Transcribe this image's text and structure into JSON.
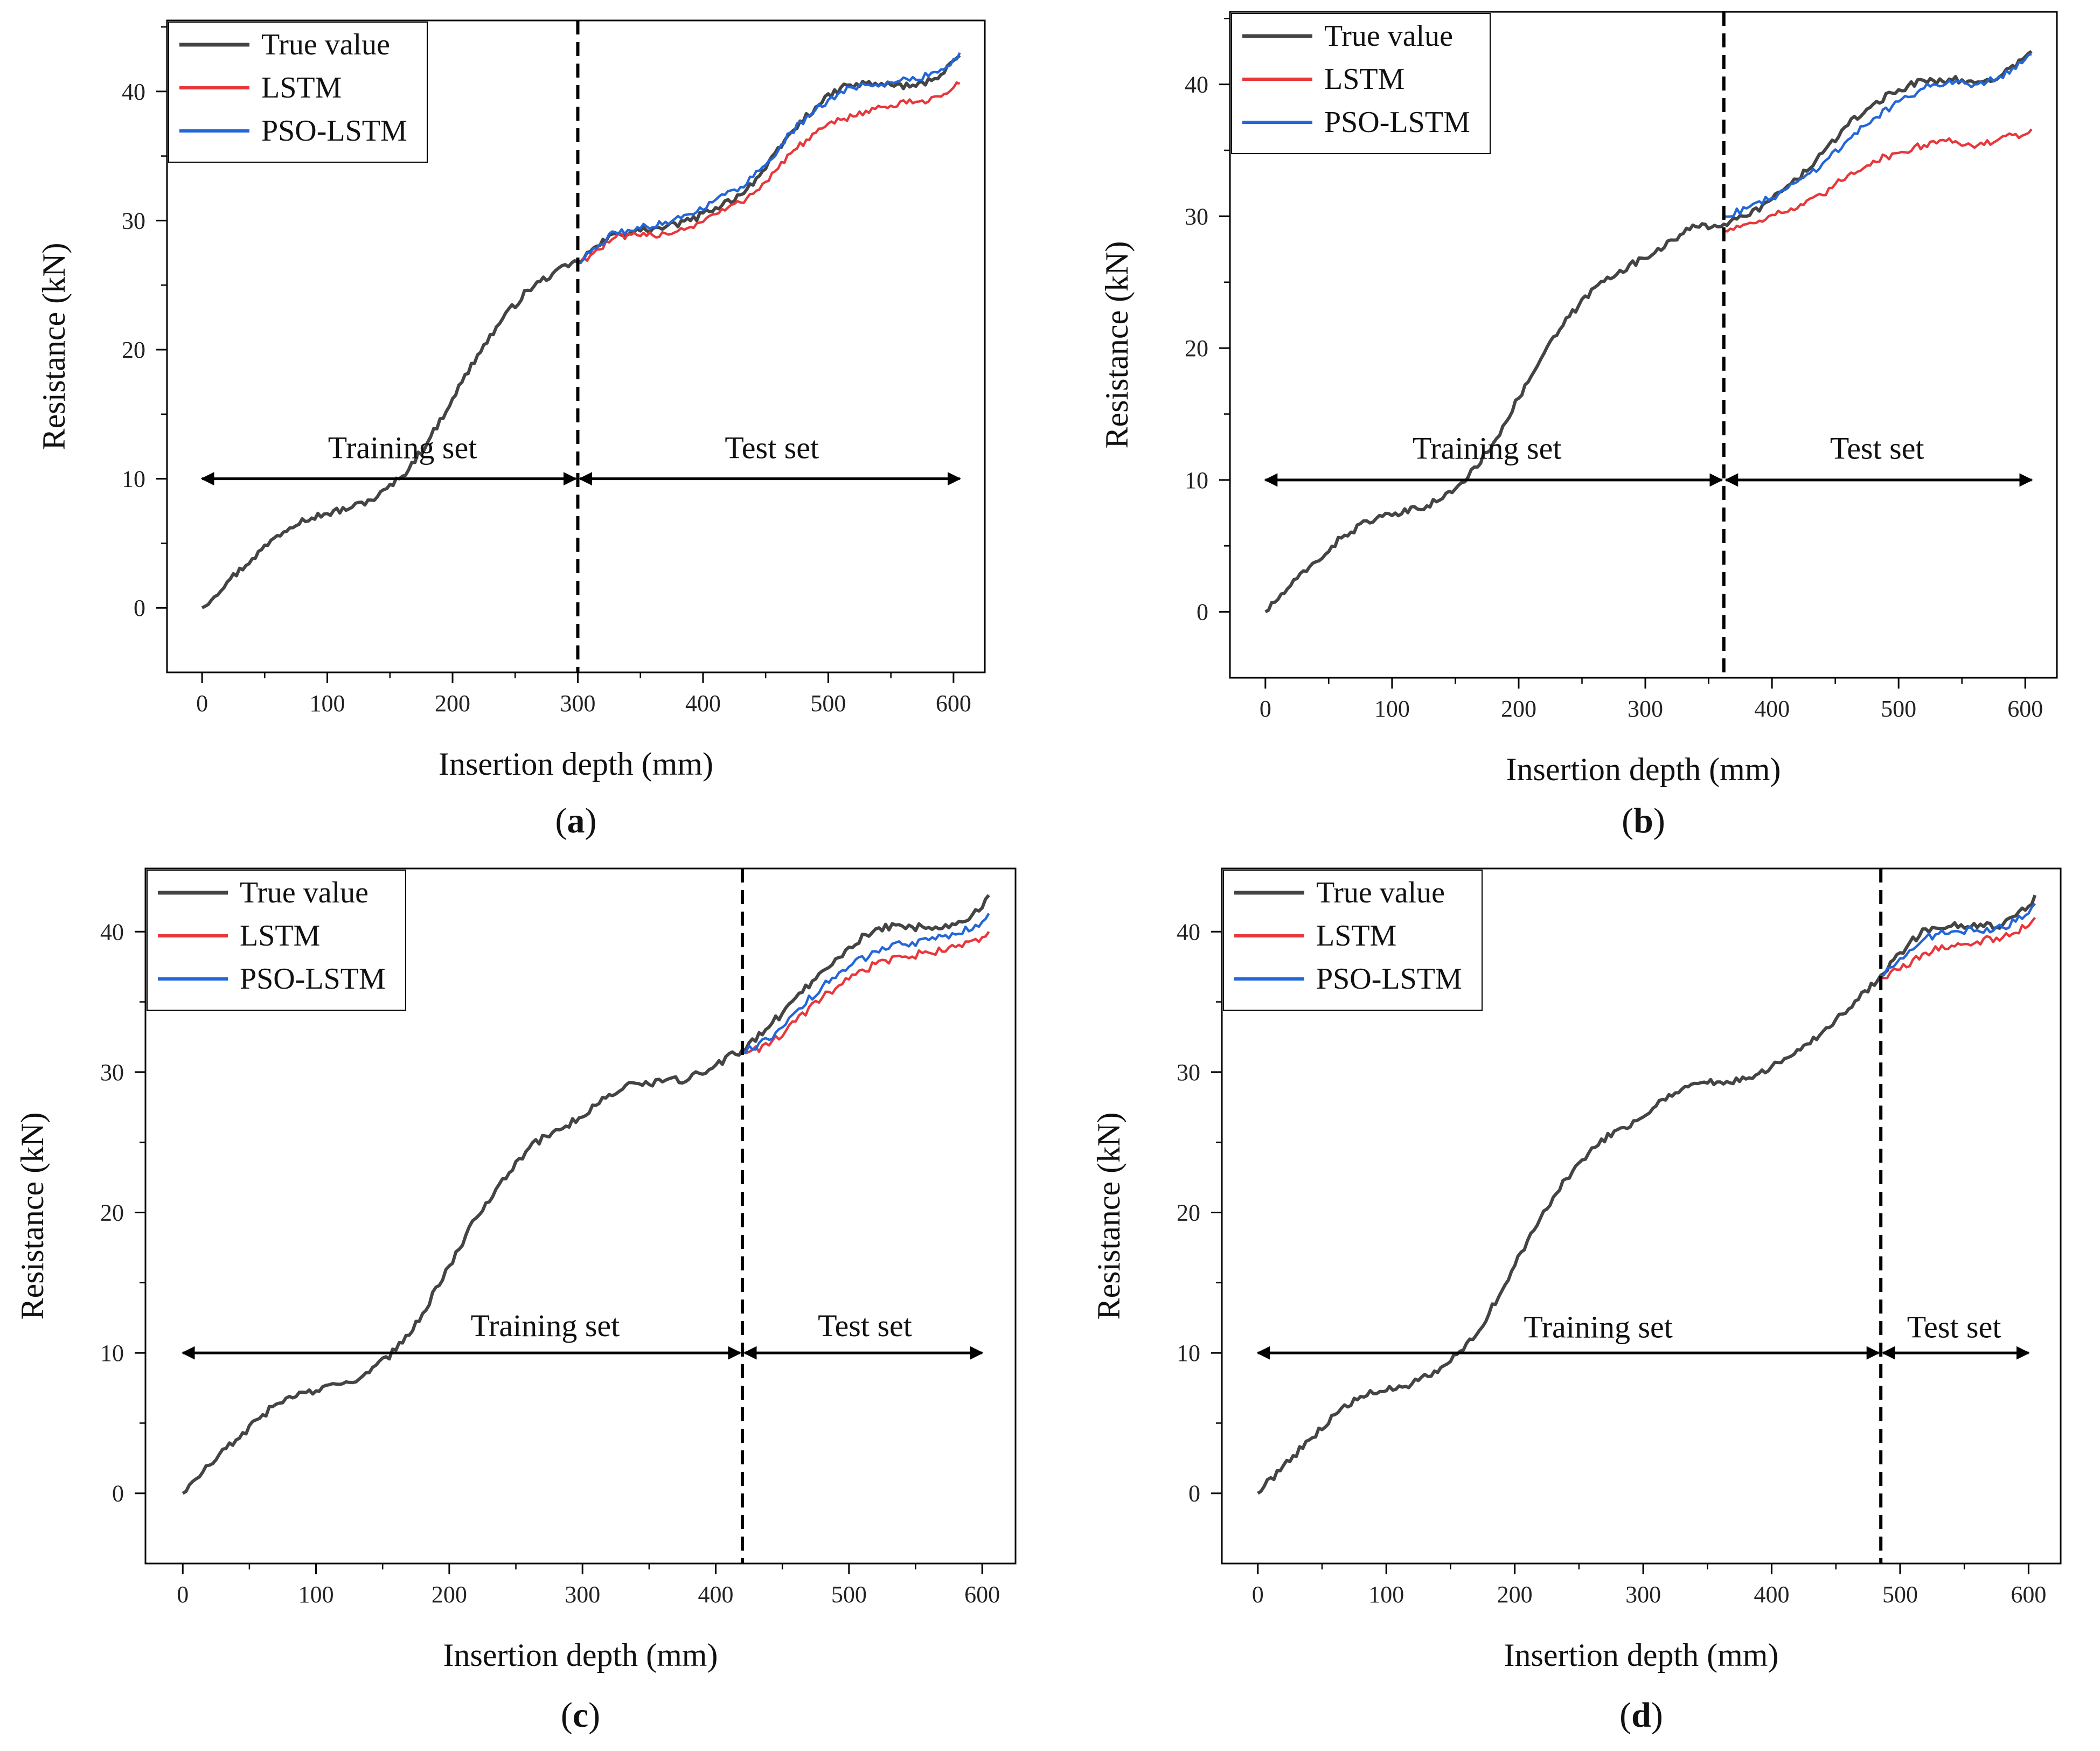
{
  "chart_data": [
    {
      "type": "line",
      "panel_label": "a",
      "xlabel": "Insertion depth (mm)",
      "ylabel": "Resistance (kN)",
      "xlim": [
        -28,
        625
      ],
      "ylim": [
        -5,
        45.5
      ],
      "xticks": [
        0,
        100,
        200,
        300,
        400,
        500,
        600
      ],
      "yticks": [
        0,
        10,
        20,
        30,
        40
      ],
      "split_x": 300,
      "split_arrow_y": 10,
      "region_labels": {
        "train": "Training set",
        "test": "Test set"
      },
      "train_label_x": 160,
      "train_label_y": 11.6,
      "test_label_x": 455,
      "test_label_y": 11.6,
      "arrow_x_range": [
        0,
        605
      ],
      "legend_position": "top-left",
      "series": [
        {
          "name": "True value",
          "color": "#444444",
          "x": [
            0,
            20,
            40,
            60,
            80,
            100,
            120,
            140,
            160,
            180,
            200,
            220,
            240,
            260,
            280,
            300,
            310,
            330,
            350,
            370,
            390,
            410,
            430,
            450,
            470,
            490,
            510,
            530,
            550,
            570,
            590,
            600,
            605
          ],
          "values": [
            0,
            2,
            3.8,
            5.6,
            6.9,
            7.3,
            7.8,
            8.6,
            10.2,
            12.8,
            16.2,
            19.6,
            22.4,
            24.6,
            25.9,
            26.8,
            27.6,
            29.0,
            29.2,
            29.5,
            30.0,
            31.0,
            32.0,
            34.0,
            36.8,
            38.8,
            40.3,
            40.6,
            40.5,
            40.4,
            41.3,
            42.4,
            42.8
          ]
        },
        {
          "name": "LSTM",
          "color": "#e8373b",
          "x": [
            300,
            310,
            330,
            350,
            370,
            390,
            410,
            430,
            450,
            470,
            490,
            510,
            530,
            550,
            570,
            590,
            600,
            605
          ],
          "values": [
            26.7,
            27.3,
            28.7,
            28.8,
            29.0,
            29.5,
            30.5,
            31.4,
            33.0,
            35.2,
            36.8,
            37.8,
            38.5,
            38.9,
            39.2,
            39.6,
            40.3,
            40.6
          ]
        },
        {
          "name": "PSO-LSTM",
          "color": "#2266d8",
          "x": [
            300,
            310,
            330,
            350,
            370,
            390,
            410,
            430,
            450,
            470,
            490,
            510,
            530,
            550,
            570,
            590,
            600,
            605
          ],
          "values": [
            26.7,
            27.5,
            29.1,
            29.4,
            29.9,
            30.5,
            31.6,
            32.6,
            34.3,
            36.8,
            38.6,
            40.0,
            40.5,
            40.7,
            40.9,
            41.7,
            42.5,
            43.0
          ]
        }
      ]
    },
    {
      "type": "line",
      "panel_label": "b",
      "xlabel": "Insertion depth (mm)",
      "ylabel": "Resistance (kN)",
      "xlim": [
        -28,
        625
      ],
      "ylim": [
        -5,
        45.5
      ],
      "xticks": [
        0,
        100,
        200,
        300,
        400,
        500,
        600
      ],
      "yticks": [
        0,
        10,
        20,
        30,
        40
      ],
      "split_x": 362,
      "split_arrow_y": 10,
      "region_labels": {
        "train": "Training set",
        "test": "Test set"
      },
      "train_label_x": 175,
      "train_label_y": 11.6,
      "test_label_x": 483,
      "test_label_y": 11.6,
      "arrow_x_range": [
        0,
        605
      ],
      "legend_position": "top-left",
      "series": [
        {
          "name": "True value",
          "color": "#444444",
          "x": [
            0,
            20,
            40,
            60,
            80,
            100,
            120,
            140,
            160,
            180,
            200,
            220,
            240,
            260,
            280,
            300,
            320,
            340,
            362,
            380,
            400,
            420,
            440,
            460,
            480,
            500,
            520,
            540,
            560,
            580,
            600,
            605
          ],
          "values": [
            0,
            2,
            3.8,
            5.6,
            6.9,
            7.3,
            7.8,
            8.6,
            10.2,
            12.8,
            16.2,
            19.6,
            22.4,
            24.6,
            25.9,
            26.8,
            28.2,
            29.2,
            29.4,
            30.0,
            31.3,
            32.8,
            34.8,
            36.9,
            38.5,
            39.6,
            40.3,
            40.4,
            40.1,
            40.6,
            42.1,
            42.5
          ]
        },
        {
          "name": "LSTM",
          "color": "#e8373b",
          "x": [
            362,
            380,
            400,
            420,
            440,
            460,
            480,
            500,
            520,
            540,
            560,
            580,
            600,
            605
          ],
          "values": [
            28.9,
            29.4,
            30.1,
            30.6,
            31.6,
            33.1,
            34.2,
            34.8,
            35.4,
            35.9,
            35.2,
            35.9,
            36.2,
            36.6
          ]
        },
        {
          "name": "PSO-LSTM",
          "color": "#2266d8",
          "x": [
            362,
            380,
            400,
            420,
            440,
            460,
            480,
            500,
            520,
            540,
            560,
            580,
            600,
            605
          ],
          "values": [
            30.0,
            30.6,
            31.4,
            32.6,
            34.0,
            35.8,
            37.4,
            38.7,
            39.7,
            40.3,
            40.0,
            40.6,
            41.9,
            42.3
          ]
        }
      ]
    },
    {
      "type": "line",
      "panel_label": "c",
      "xlabel": "Insertion depth (mm)",
      "ylabel": "Resistance (kN)",
      "xlim": [
        -28,
        625
      ],
      "ylim": [
        -5,
        44.5
      ],
      "xticks": [
        0,
        100,
        200,
        300,
        400,
        500,
        600
      ],
      "yticks": [
        0,
        10,
        20,
        30,
        40
      ],
      "split_x": 420,
      "split_arrow_y": 10,
      "region_labels": {
        "train": "Training set",
        "test": "Test set"
      },
      "train_label_x": 272,
      "train_label_y": 11.2,
      "test_label_x": 512,
      "test_label_y": 11.2,
      "arrow_x_range": [
        0,
        600
      ],
      "legend_position": "top-left",
      "series": [
        {
          "name": "True value",
          "color": "#444444",
          "x": [
            0,
            20,
            40,
            60,
            80,
            100,
            120,
            140,
            160,
            180,
            200,
            220,
            240,
            260,
            280,
            300,
            320,
            340,
            360,
            380,
            400,
            420,
            440,
            460,
            480,
            500,
            520,
            540,
            560,
            580,
            600,
            605
          ],
          "values": [
            0,
            2,
            3.8,
            5.6,
            6.9,
            7.3,
            7.8,
            8.6,
            10.2,
            12.8,
            16.2,
            19.6,
            22.4,
            24.6,
            25.9,
            26.8,
            28.4,
            29.2,
            29.3,
            29.5,
            30.5,
            31.6,
            33.2,
            35.3,
            37.2,
            38.9,
            40.2,
            40.4,
            40.3,
            40.5,
            41.7,
            42.6
          ]
        },
        {
          "name": "LSTM",
          "color": "#e8373b",
          "x": [
            420,
            440,
            460,
            480,
            500,
            520,
            540,
            560,
            580,
            600,
            605
          ],
          "values": [
            31.4,
            31.9,
            33.6,
            35.3,
            36.6,
            37.7,
            38.2,
            38.5,
            38.9,
            39.6,
            40.0
          ]
        },
        {
          "name": "PSO-LSTM",
          "color": "#2266d8",
          "x": [
            420,
            440,
            460,
            480,
            500,
            520,
            540,
            560,
            580,
            600,
            605
          ],
          "values": [
            31.4,
            32.3,
            34.3,
            36.1,
            37.5,
            38.6,
            39.1,
            39.4,
            39.8,
            40.7,
            41.3
          ]
        }
      ]
    },
    {
      "type": "line",
      "panel_label": "d",
      "xlabel": "Insertion depth (mm)",
      "ylabel": "Resistance (kN)",
      "xlim": [
        -28,
        625
      ],
      "ylim": [
        -5,
        44.5
      ],
      "xticks": [
        0,
        100,
        200,
        300,
        400,
        500,
        600
      ],
      "yticks": [
        0,
        10,
        20,
        30,
        40
      ],
      "split_x": 485,
      "split_arrow_y": 10,
      "region_labels": {
        "train": "Training set",
        "test": "Test set"
      },
      "train_label_x": 265,
      "train_label_y": 11.1,
      "test_label_x": 542,
      "test_label_y": 11.1,
      "arrow_x_range": [
        0,
        600
      ],
      "legend_position": "top-left",
      "series": [
        {
          "name": "True value",
          "color": "#444444",
          "x": [
            0,
            20,
            40,
            60,
            80,
            100,
            120,
            140,
            160,
            180,
            200,
            220,
            240,
            260,
            280,
            300,
            320,
            340,
            360,
            380,
            400,
            420,
            440,
            460,
            485,
            500,
            520,
            540,
            560,
            580,
            600,
            605
          ],
          "values": [
            0,
            2,
            3.8,
            5.6,
            6.9,
            7.3,
            7.8,
            8.6,
            10.2,
            12.8,
            16.2,
            19.6,
            22.4,
            24.6,
            25.9,
            26.8,
            28.4,
            29.2,
            29.3,
            29.5,
            30.4,
            31.6,
            32.9,
            34.5,
            36.9,
            38.5,
            40.2,
            40.4,
            40.3,
            40.5,
            41.8,
            42.6
          ]
        },
        {
          "name": "LSTM",
          "color": "#e8373b",
          "x": [
            485,
            500,
            520,
            540,
            560,
            580,
            600,
            605
          ],
          "values": [
            36.7,
            37.3,
            38.5,
            39.0,
            39.3,
            39.6,
            40.4,
            41.0
          ]
        },
        {
          "name": "PSO-LSTM",
          "color": "#2266d8",
          "x": [
            485,
            500,
            520,
            540,
            560,
            580,
            600,
            605
          ],
          "values": [
            36.8,
            38.1,
            39.6,
            40.0,
            40.1,
            40.3,
            41.3,
            42.0
          ]
        }
      ]
    }
  ]
}
